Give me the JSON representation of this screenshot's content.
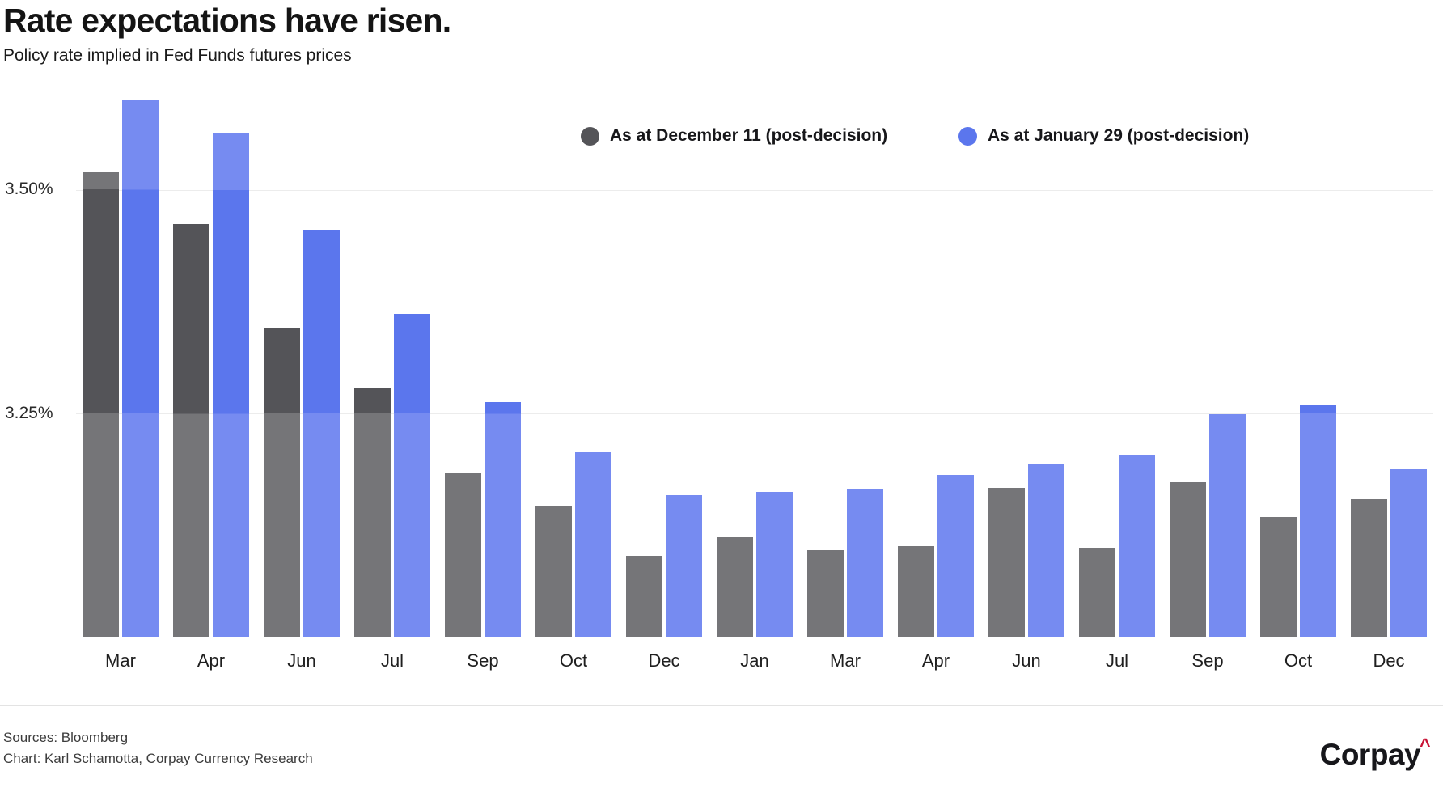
{
  "header": {
    "title": "Rate expectations have risen.",
    "subtitle": "Policy rate implied in Fed Funds futures prices"
  },
  "chart_data": {
    "type": "bar",
    "title": "Rate expectations have risen.",
    "subtitle": "Policy rate implied in Fed Funds futures prices",
    "categories": [
      "Mar",
      "Apr",
      "Jun",
      "Jul",
      "Sep",
      "Oct",
      "Dec",
      "Jan",
      "Mar",
      "Apr",
      "Jun",
      "Jul",
      "Sep",
      "Oct",
      "Dec"
    ],
    "series": [
      {
        "name": "As at December 11 (post-decision)",
        "key": "dec11",
        "color_full": "#545458",
        "color_faded": "#757578",
        "values": [
          3.519,
          3.462,
          3.345,
          3.279,
          3.183,
          3.146,
          3.091,
          3.112,
          3.097,
          3.102,
          3.167,
          3.1,
          3.173,
          3.134,
          3.154
        ]
      },
      {
        "name": "As at January 29 (post-decision)",
        "key": "jan29",
        "color_full": "#5b76ed",
        "color_faded": "#768bf1",
        "values": [
          3.601,
          3.564,
          3.455,
          3.361,
          3.263,
          3.207,
          3.159,
          3.162,
          3.166,
          3.181,
          3.193,
          3.204,
          3.249,
          3.259,
          3.188
        ]
      }
    ],
    "ylabel": "",
    "xlabel": "",
    "ylim": [
      3.0,
      3.625
    ],
    "yticks": [
      {
        "value": 3.5,
        "label": "3.50%"
      },
      {
        "value": 3.25,
        "label": "3.25%"
      }
    ],
    "grid": "horizontal-only",
    "highlight_band": {
      "from": 3.25,
      "to": 3.5
    },
    "legend_position": "top-right"
  },
  "legend": {
    "items": [
      {
        "label": "As at December 11 (post-decision)",
        "color": "#545458"
      },
      {
        "label": "As at January 29 (post-decision)",
        "color": "#5b76ed"
      }
    ]
  },
  "footer": {
    "sources": "Sources: Bloomberg",
    "credit": "Chart: Karl Schamotta, Corpay Currency Research",
    "logo_text": "Corpay",
    "logo_caret": "^"
  }
}
